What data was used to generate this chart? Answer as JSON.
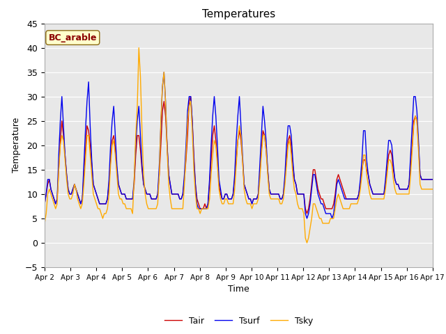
{
  "title": "Temperatures",
  "xlabel": "Time",
  "ylabel": "Temperature",
  "ylim": [
    -5,
    45
  ],
  "yticks": [
    -5,
    0,
    5,
    10,
    15,
    20,
    25,
    30,
    35,
    40,
    45
  ],
  "annotation": "BC_arable",
  "fig_bg_color": "#f0f0f0",
  "plot_bg_color": "#e8e8e8",
  "tair_color": "#cc0000",
  "tsurf_color": "#0000ee",
  "tsky_color": "#ffaa00",
  "legend_labels": [
    "Tair",
    "Tsurf",
    "Tsky"
  ],
  "xtick_labels": [
    "Apr 2",
    "Apr 3",
    "Apr 4",
    "Apr 5",
    "Apr 6",
    "Apr 7",
    "Apr 8",
    "Apr 9",
    "Apr 10",
    "Apr 11",
    "Apr 12",
    "Apr 13",
    "Apr 14",
    "Apr 15",
    "Apr 16",
    "Apr 17"
  ],
  "tair": [
    8,
    10,
    12,
    13,
    11,
    10,
    9,
    8,
    9,
    15,
    21,
    25,
    22,
    18,
    14,
    11,
    10,
    10,
    11,
    12,
    11,
    10,
    9,
    8,
    9,
    14,
    19,
    24,
    23,
    20,
    16,
    12,
    11,
    10,
    9,
    8,
    8,
    8,
    8,
    8,
    9,
    12,
    17,
    21,
    22,
    19,
    15,
    12,
    11,
    10,
    10,
    10,
    9,
    9,
    9,
    9,
    9,
    12,
    18,
    22,
    22,
    19,
    15,
    12,
    11,
    10,
    10,
    10,
    9,
    9,
    9,
    9,
    10,
    14,
    20,
    27,
    29,
    26,
    20,
    14,
    12,
    10,
    10,
    10,
    10,
    10,
    9,
    9,
    10,
    13,
    17,
    22,
    29,
    30,
    25,
    18,
    12,
    9,
    8,
    7,
    7,
    7,
    8,
    7,
    8,
    12,
    17,
    22,
    24,
    21,
    17,
    12,
    10,
    9,
    9,
    10,
    10,
    9,
    9,
    9,
    10,
    13,
    17,
    21,
    23,
    21,
    17,
    12,
    11,
    10,
    9,
    9,
    8,
    9,
    9,
    9,
    10,
    14,
    19,
    23,
    22,
    19,
    15,
    11,
    10,
    10,
    10,
    10,
    10,
    10,
    9,
    9,
    10,
    13,
    17,
    21,
    22,
    20,
    16,
    13,
    12,
    10,
    10,
    10,
    10,
    10,
    7,
    6,
    7,
    9,
    12,
    15,
    15,
    13,
    11,
    10,
    9,
    9,
    8,
    7,
    7,
    7,
    7,
    7,
    8,
    10,
    13,
    14,
    13,
    12,
    11,
    10,
    9,
    9,
    9,
    9,
    9,
    9,
    9,
    9,
    10,
    12,
    15,
    17,
    17,
    15,
    14,
    12,
    11,
    10,
    10,
    10,
    10,
    10,
    10,
    10,
    10,
    12,
    15,
    18,
    19,
    18,
    15,
    13,
    12,
    12,
    11,
    11,
    11,
    11,
    11,
    11,
    12,
    16,
    20,
    25,
    26,
    25,
    20,
    14,
    13,
    13,
    13,
    13,
    13,
    13,
    13,
    13
  ],
  "tsurf": [
    8,
    10,
    13,
    13,
    11,
    10,
    9,
    8,
    9,
    18,
    25,
    30,
    24,
    18,
    14,
    11,
    10,
    10,
    11,
    12,
    11,
    10,
    9,
    8,
    9,
    16,
    23,
    29,
    33,
    24,
    17,
    12,
    11,
    10,
    9,
    8,
    8,
    8,
    8,
    8,
    9,
    13,
    20,
    25,
    28,
    22,
    16,
    12,
    11,
    10,
    10,
    10,
    9,
    9,
    9,
    9,
    9,
    13,
    20,
    25,
    28,
    22,
    16,
    12,
    11,
    10,
    10,
    10,
    9,
    9,
    9,
    9,
    10,
    16,
    24,
    32,
    35,
    29,
    20,
    14,
    12,
    10,
    10,
    10,
    10,
    10,
    9,
    9,
    10,
    14,
    20,
    27,
    30,
    30,
    25,
    17,
    12,
    8,
    7,
    7,
    7,
    7,
    7,
    7,
    8,
    13,
    20,
    26,
    30,
    26,
    20,
    13,
    11,
    9,
    9,
    10,
    10,
    9,
    9,
    9,
    10,
    14,
    21,
    26,
    30,
    24,
    18,
    12,
    11,
    10,
    9,
    9,
    8,
    9,
    9,
    9,
    10,
    16,
    22,
    28,
    25,
    21,
    15,
    11,
    10,
    10,
    10,
    10,
    10,
    10,
    9,
    9,
    10,
    14,
    20,
    24,
    24,
    22,
    17,
    13,
    12,
    10,
    10,
    10,
    10,
    10,
    6,
    5,
    6,
    8,
    11,
    14,
    14,
    12,
    10,
    9,
    8,
    8,
    7,
    6,
    6,
    6,
    6,
    5,
    6,
    9,
    12,
    13,
    12,
    11,
    10,
    9,
    9,
    9,
    9,
    9,
    9,
    9,
    9,
    9,
    10,
    13,
    17,
    23,
    23,
    17,
    14,
    12,
    11,
    10,
    10,
    10,
    10,
    10,
    10,
    10,
    10,
    13,
    17,
    21,
    21,
    20,
    16,
    13,
    12,
    12,
    11,
    11,
    11,
    11,
    11,
    11,
    12,
    18,
    24,
    30,
    30,
    27,
    21,
    14,
    13,
    13,
    13,
    13,
    13,
    13,
    13,
    13
  ],
  "tsky": [
    4,
    6,
    10,
    11,
    10,
    9,
    8,
    7,
    8,
    15,
    20,
    22,
    21,
    17,
    13,
    10,
    9,
    9,
    10,
    12,
    11,
    9,
    8,
    7,
    8,
    12,
    17,
    22,
    22,
    18,
    14,
    10,
    9,
    8,
    7,
    7,
    6,
    5,
    6,
    6,
    7,
    10,
    16,
    20,
    21,
    18,
    14,
    10,
    9,
    9,
    8,
    8,
    7,
    7,
    7,
    7,
    6,
    13,
    22,
    28,
    40,
    34,
    23,
    14,
    10,
    8,
    7,
    7,
    7,
    7,
    7,
    7,
    8,
    14,
    25,
    32,
    35,
    29,
    19,
    12,
    9,
    7,
    7,
    7,
    7,
    7,
    7,
    7,
    7,
    12,
    18,
    25,
    28,
    29,
    23,
    15,
    10,
    7,
    7,
    6,
    7,
    7,
    7,
    7,
    7,
    9,
    14,
    18,
    21,
    20,
    16,
    11,
    9,
    8,
    8,
    9,
    9,
    8,
    8,
    8,
    8,
    11,
    16,
    21,
    24,
    22,
    17,
    11,
    9,
    8,
    8,
    8,
    7,
    8,
    8,
    8,
    9,
    13,
    18,
    22,
    22,
    19,
    14,
    10,
    9,
    9,
    9,
    9,
    9,
    9,
    8,
    8,
    9,
    12,
    16,
    20,
    21,
    18,
    14,
    11,
    10,
    8,
    7,
    7,
    7,
    6,
    1,
    0,
    1,
    3,
    5,
    8,
    8,
    7,
    6,
    5,
    5,
    4,
    4,
    4,
    4,
    4,
    5,
    5,
    5,
    7,
    9,
    10,
    9,
    8,
    7,
    7,
    7,
    7,
    7,
    8,
    8,
    8,
    8,
    8,
    9,
    11,
    14,
    18,
    18,
    14,
    12,
    10,
    9,
    9,
    9,
    9,
    9,
    9,
    9,
    9,
    9,
    11,
    14,
    17,
    17,
    16,
    13,
    11,
    10,
    10,
    10,
    10,
    10,
    10,
    10,
    10,
    10,
    14,
    19,
    24,
    26,
    25,
    19,
    12,
    11,
    11,
    11,
    11,
    11,
    11,
    11,
    11
  ]
}
